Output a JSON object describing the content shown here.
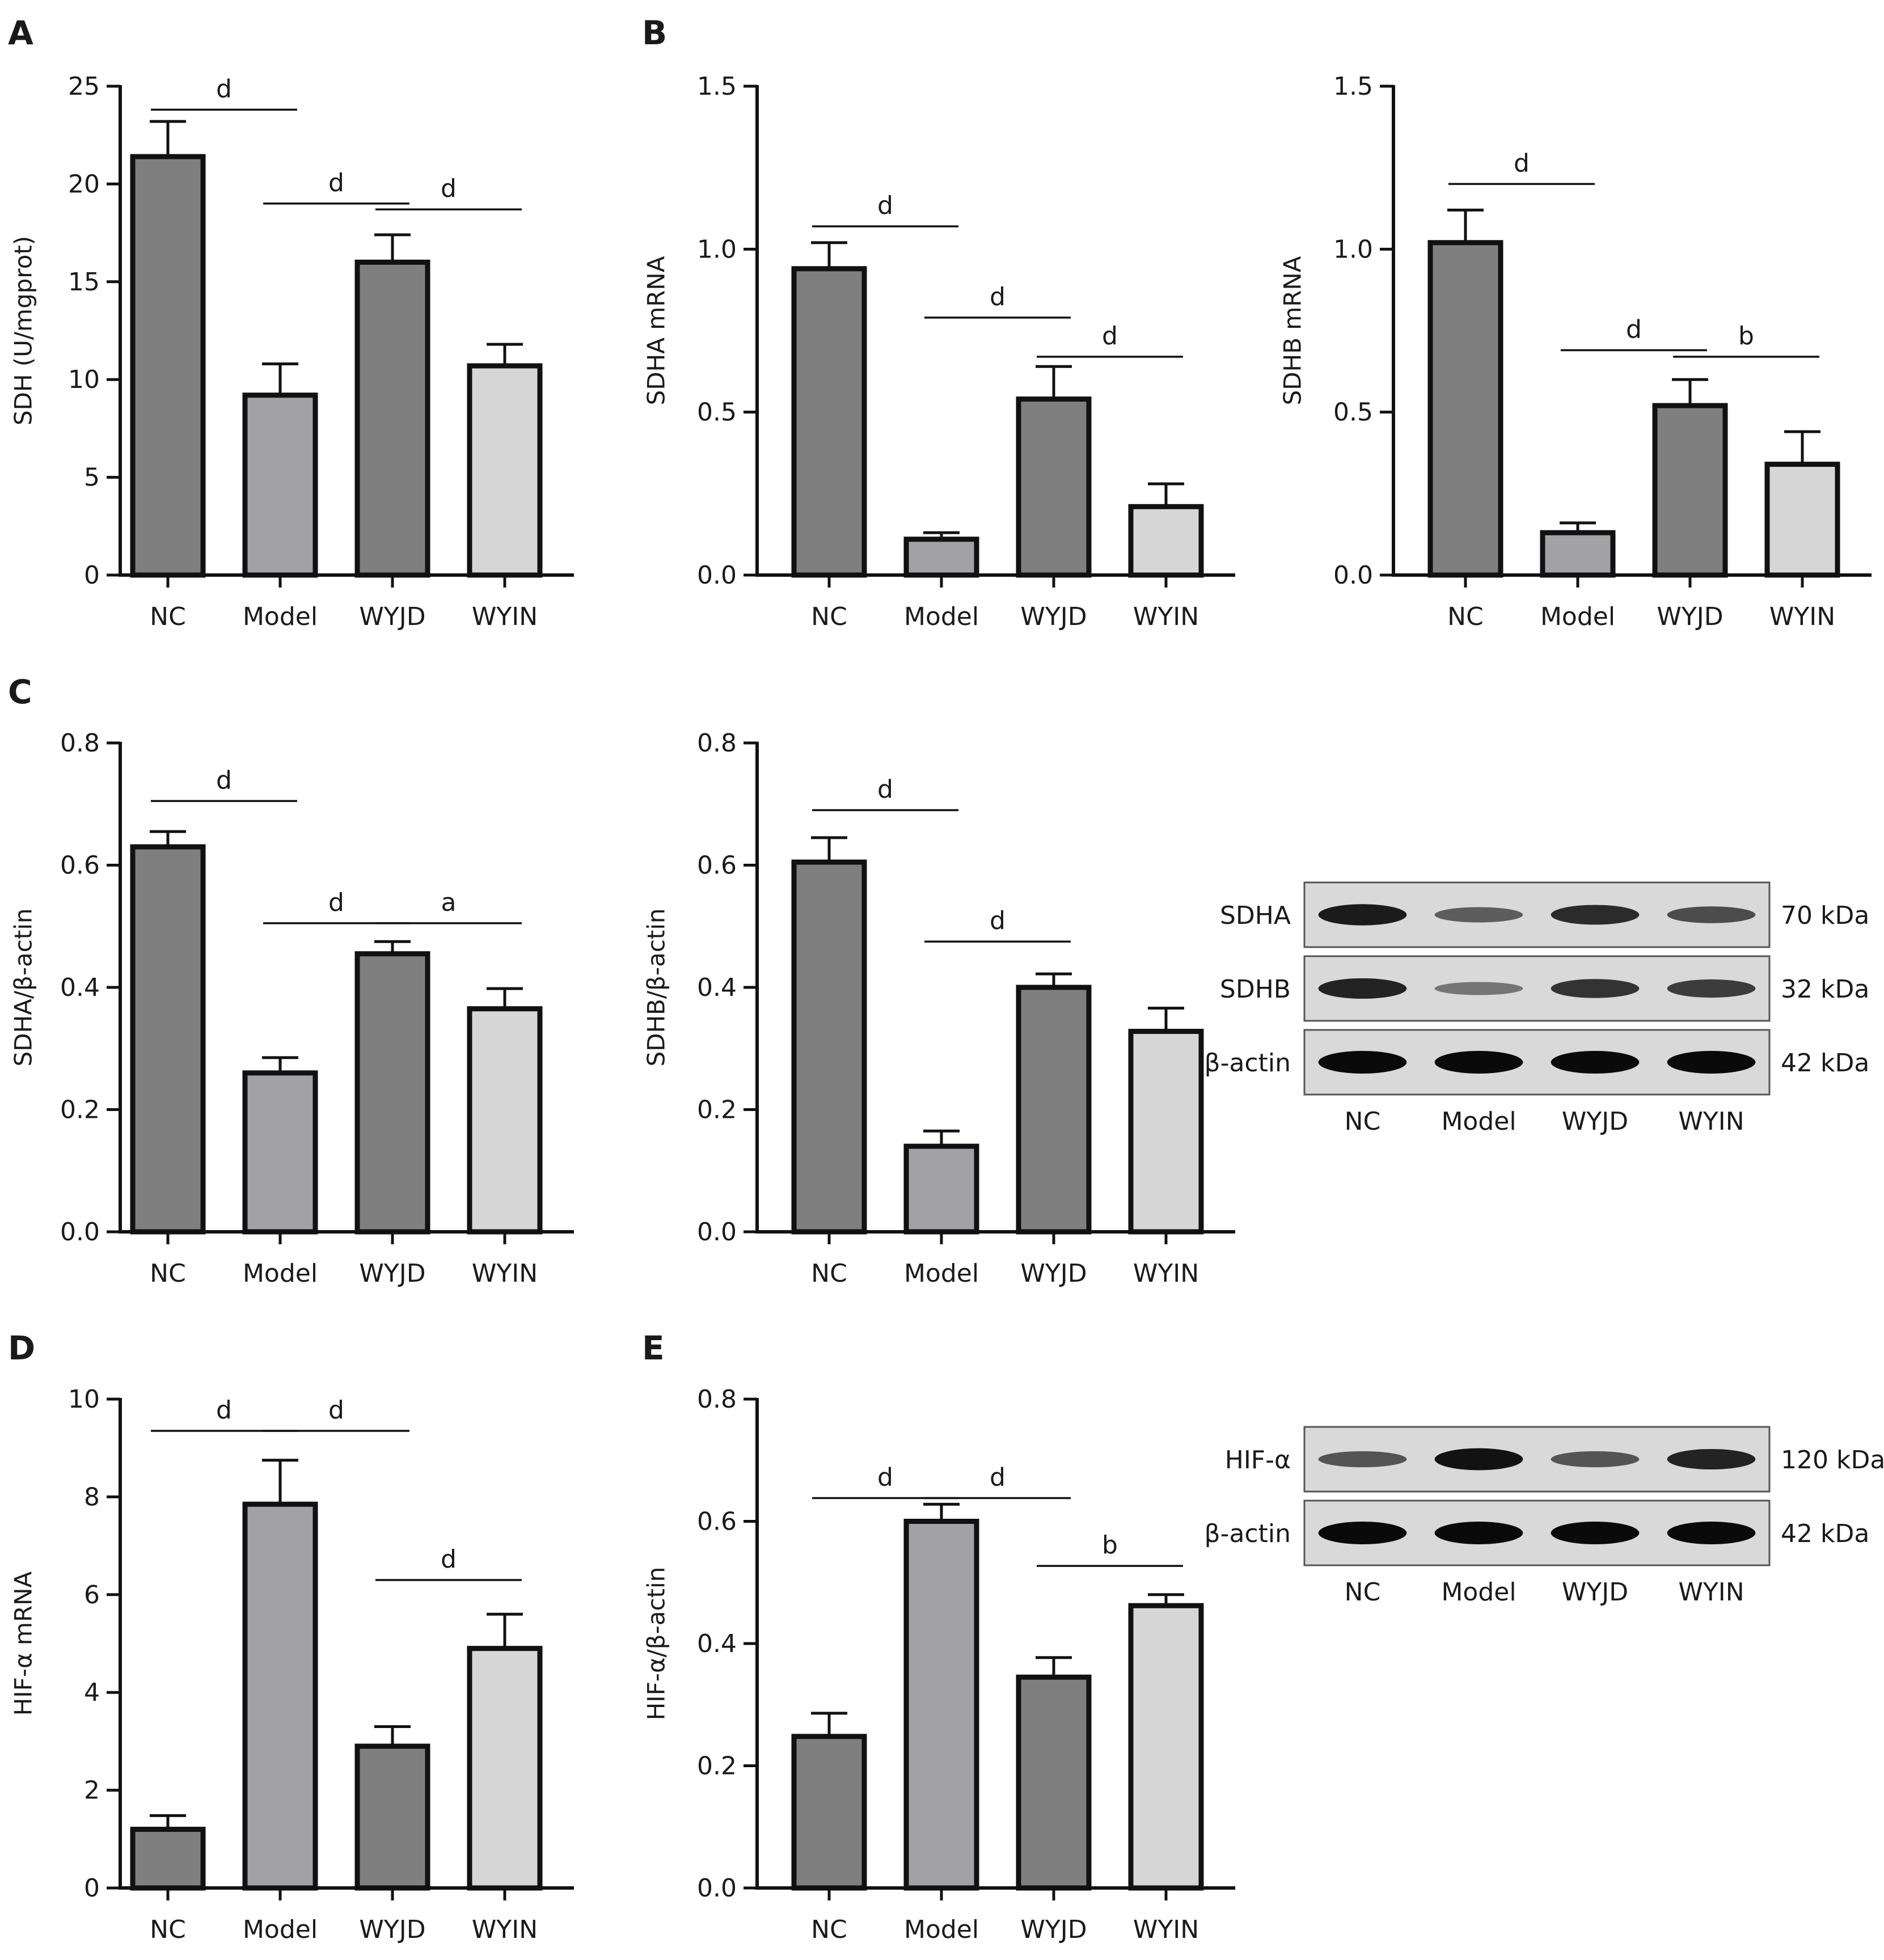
{
  "panel_letters": [
    "A",
    "B",
    "C",
    "D",
    "E"
  ],
  "colors": {
    "NC": "#7f7f7f",
    "Model": "#a2a2a6",
    "WYJD": "#7f7f7f",
    "WYIN": "#d6d6d6",
    "outline": "#111111"
  },
  "chart_data": [
    {
      "type": "bar",
      "id": "sdh",
      "categories": [
        "NC",
        "Model",
        "WYJD",
        "WYIN"
      ],
      "values": [
        21.4,
        9.2,
        16.0,
        10.7
      ],
      "errors": [
        1.8,
        1.6,
        1.4,
        1.1
      ],
      "ylabel": "SDH (U/mgprot)",
      "ylim": [
        0,
        25
      ],
      "yticks": [
        0,
        5,
        10,
        15,
        20,
        25
      ],
      "significance": [
        {
          "from": 0,
          "to": 1,
          "label": "d",
          "y": 23.8
        },
        {
          "from": 1,
          "to": 2,
          "label": "d",
          "y": 19.0
        },
        {
          "from": 2,
          "to": 3,
          "label": "d",
          "y": 18.7
        }
      ]
    },
    {
      "type": "bar",
      "id": "sdha-mrna",
      "categories": [
        "NC",
        "Model",
        "WYJD",
        "WYIN"
      ],
      "values": [
        0.94,
        0.11,
        0.54,
        0.21
      ],
      "errors": [
        0.08,
        0.02,
        0.1,
        0.07
      ],
      "ylabel": "SDHA mRNA",
      "ylim": [
        0,
        1.5
      ],
      "yticks": [
        "0.0",
        "0.5",
        "1.0",
        "1.5"
      ],
      "significance": [
        {
          "from": 0,
          "to": 1,
          "label": "d",
          "y": 1.07
        },
        {
          "from": 1,
          "to": 2,
          "label": "d",
          "y": 0.79
        },
        {
          "from": 2,
          "to": 3,
          "label": "d",
          "y": 0.67
        }
      ]
    },
    {
      "type": "bar",
      "id": "sdhb-mrna",
      "categories": [
        "NC",
        "Model",
        "WYJD",
        "WYIN"
      ],
      "values": [
        1.02,
        0.13,
        0.52,
        0.34
      ],
      "errors": [
        0.1,
        0.03,
        0.08,
        0.1
      ],
      "ylabel": "SDHB mRNA",
      "ylim": [
        0,
        1.5
      ],
      "yticks": [
        "0.0",
        "0.5",
        "1.0",
        "1.5"
      ],
      "significance": [
        {
          "from": 0,
          "to": 1,
          "label": "d",
          "y": 1.2
        },
        {
          "from": 1,
          "to": 2,
          "label": "d",
          "y": 0.69
        },
        {
          "from": 2,
          "to": 3,
          "label": "b",
          "y": 0.67
        }
      ]
    },
    {
      "type": "bar",
      "id": "sdha-actin",
      "categories": [
        "NC",
        "Model",
        "WYJD",
        "WYIN"
      ],
      "values": [
        0.63,
        0.26,
        0.455,
        0.365
      ],
      "errors": [
        0.025,
        0.025,
        0.02,
        0.033
      ],
      "ylabel": "SDHA/β-actin",
      "ylim": [
        0,
        0.8
      ],
      "yticks": [
        "0.0",
        "0.2",
        "0.4",
        "0.6",
        "0.8"
      ],
      "significance": [
        {
          "from": 0,
          "to": 1,
          "label": "d",
          "y": 0.705
        },
        {
          "from": 1,
          "to": 2,
          "label": "d",
          "y": 0.505
        },
        {
          "from": 2,
          "to": 3,
          "label": "a",
          "y": 0.505
        }
      ]
    },
    {
      "type": "bar",
      "id": "sdhb-actin",
      "categories": [
        "NC",
        "Model",
        "WYJD",
        "WYIN"
      ],
      "values": [
        0.605,
        0.14,
        0.4,
        0.328
      ],
      "errors": [
        0.04,
        0.025,
        0.022,
        0.038
      ],
      "ylabel": "SDHB/β-actin",
      "ylim": [
        0,
        0.8
      ],
      "yticks": [
        "0.0",
        "0.2",
        "0.4",
        "0.6",
        "0.8"
      ],
      "significance": [
        {
          "from": 0,
          "to": 1,
          "label": "d",
          "y": 0.69
        },
        {
          "from": 1,
          "to": 2,
          "label": "d",
          "y": 0.475
        }
      ]
    },
    {
      "type": "bar",
      "id": "hif-mrna",
      "categories": [
        "NC",
        "Model",
        "WYJD",
        "WYIN"
      ],
      "values": [
        1.2,
        7.85,
        2.9,
        4.9
      ],
      "errors": [
        0.28,
        0.9,
        0.4,
        0.7
      ],
      "ylabel": "HIF-α mRNA",
      "ylim": [
        0,
        10
      ],
      "yticks": [
        0,
        2,
        4,
        6,
        8,
        10
      ],
      "significance": [
        {
          "from": 0,
          "to": 1,
          "label": "d",
          "y": 9.35
        },
        {
          "from": 1,
          "to": 2,
          "label": "d",
          "y": 9.35
        },
        {
          "from": 2,
          "to": 3,
          "label": "d",
          "y": 6.3
        }
      ]
    },
    {
      "type": "bar",
      "id": "hif-actin",
      "categories": [
        "NC",
        "Model",
        "WYJD",
        "WYIN"
      ],
      "values": [
        0.248,
        0.6,
        0.345,
        0.462
      ],
      "errors": [
        0.038,
        0.028,
        0.032,
        0.018
      ],
      "ylabel": "HIF-α/β-actin",
      "ylim": [
        0,
        0.8
      ],
      "yticks": [
        "0.0",
        "0.2",
        "0.4",
        "0.6",
        "0.8"
      ],
      "significance": [
        {
          "from": 0,
          "to": 1,
          "label": "d",
          "y": 0.638
        },
        {
          "from": 1,
          "to": 2,
          "label": "d",
          "y": 0.638
        },
        {
          "from": 2,
          "to": 3,
          "label": "b",
          "y": 0.527
        }
      ]
    }
  ],
  "blots": [
    {
      "id": "sdh-blot",
      "lanes": [
        "NC",
        "Model",
        "WYJD",
        "WYIN"
      ],
      "rows": [
        {
          "protein": "SDHA",
          "size": "70 kDa",
          "intensity": [
            0.9,
            0.5,
            0.8,
            0.6
          ]
        },
        {
          "protein": "SDHB",
          "size": "32 kDa",
          "intensity": [
            0.85,
            0.35,
            0.75,
            0.7
          ]
        },
        {
          "protein": "β-actin",
          "size": "42 kDa",
          "intensity": [
            1.0,
            1.0,
            1.0,
            1.0
          ]
        }
      ]
    },
    {
      "id": "hif-blot",
      "lanes": [
        "NC",
        "Model",
        "WYJD",
        "WYIN"
      ],
      "rows": [
        {
          "protein": "HIF-α",
          "size": "120 kDa",
          "intensity": [
            0.55,
            0.95,
            0.55,
            0.85
          ]
        },
        {
          "protein": "β-actin",
          "size": "42 kDa",
          "intensity": [
            1.0,
            1.0,
            1.0,
            1.0
          ]
        }
      ]
    }
  ]
}
